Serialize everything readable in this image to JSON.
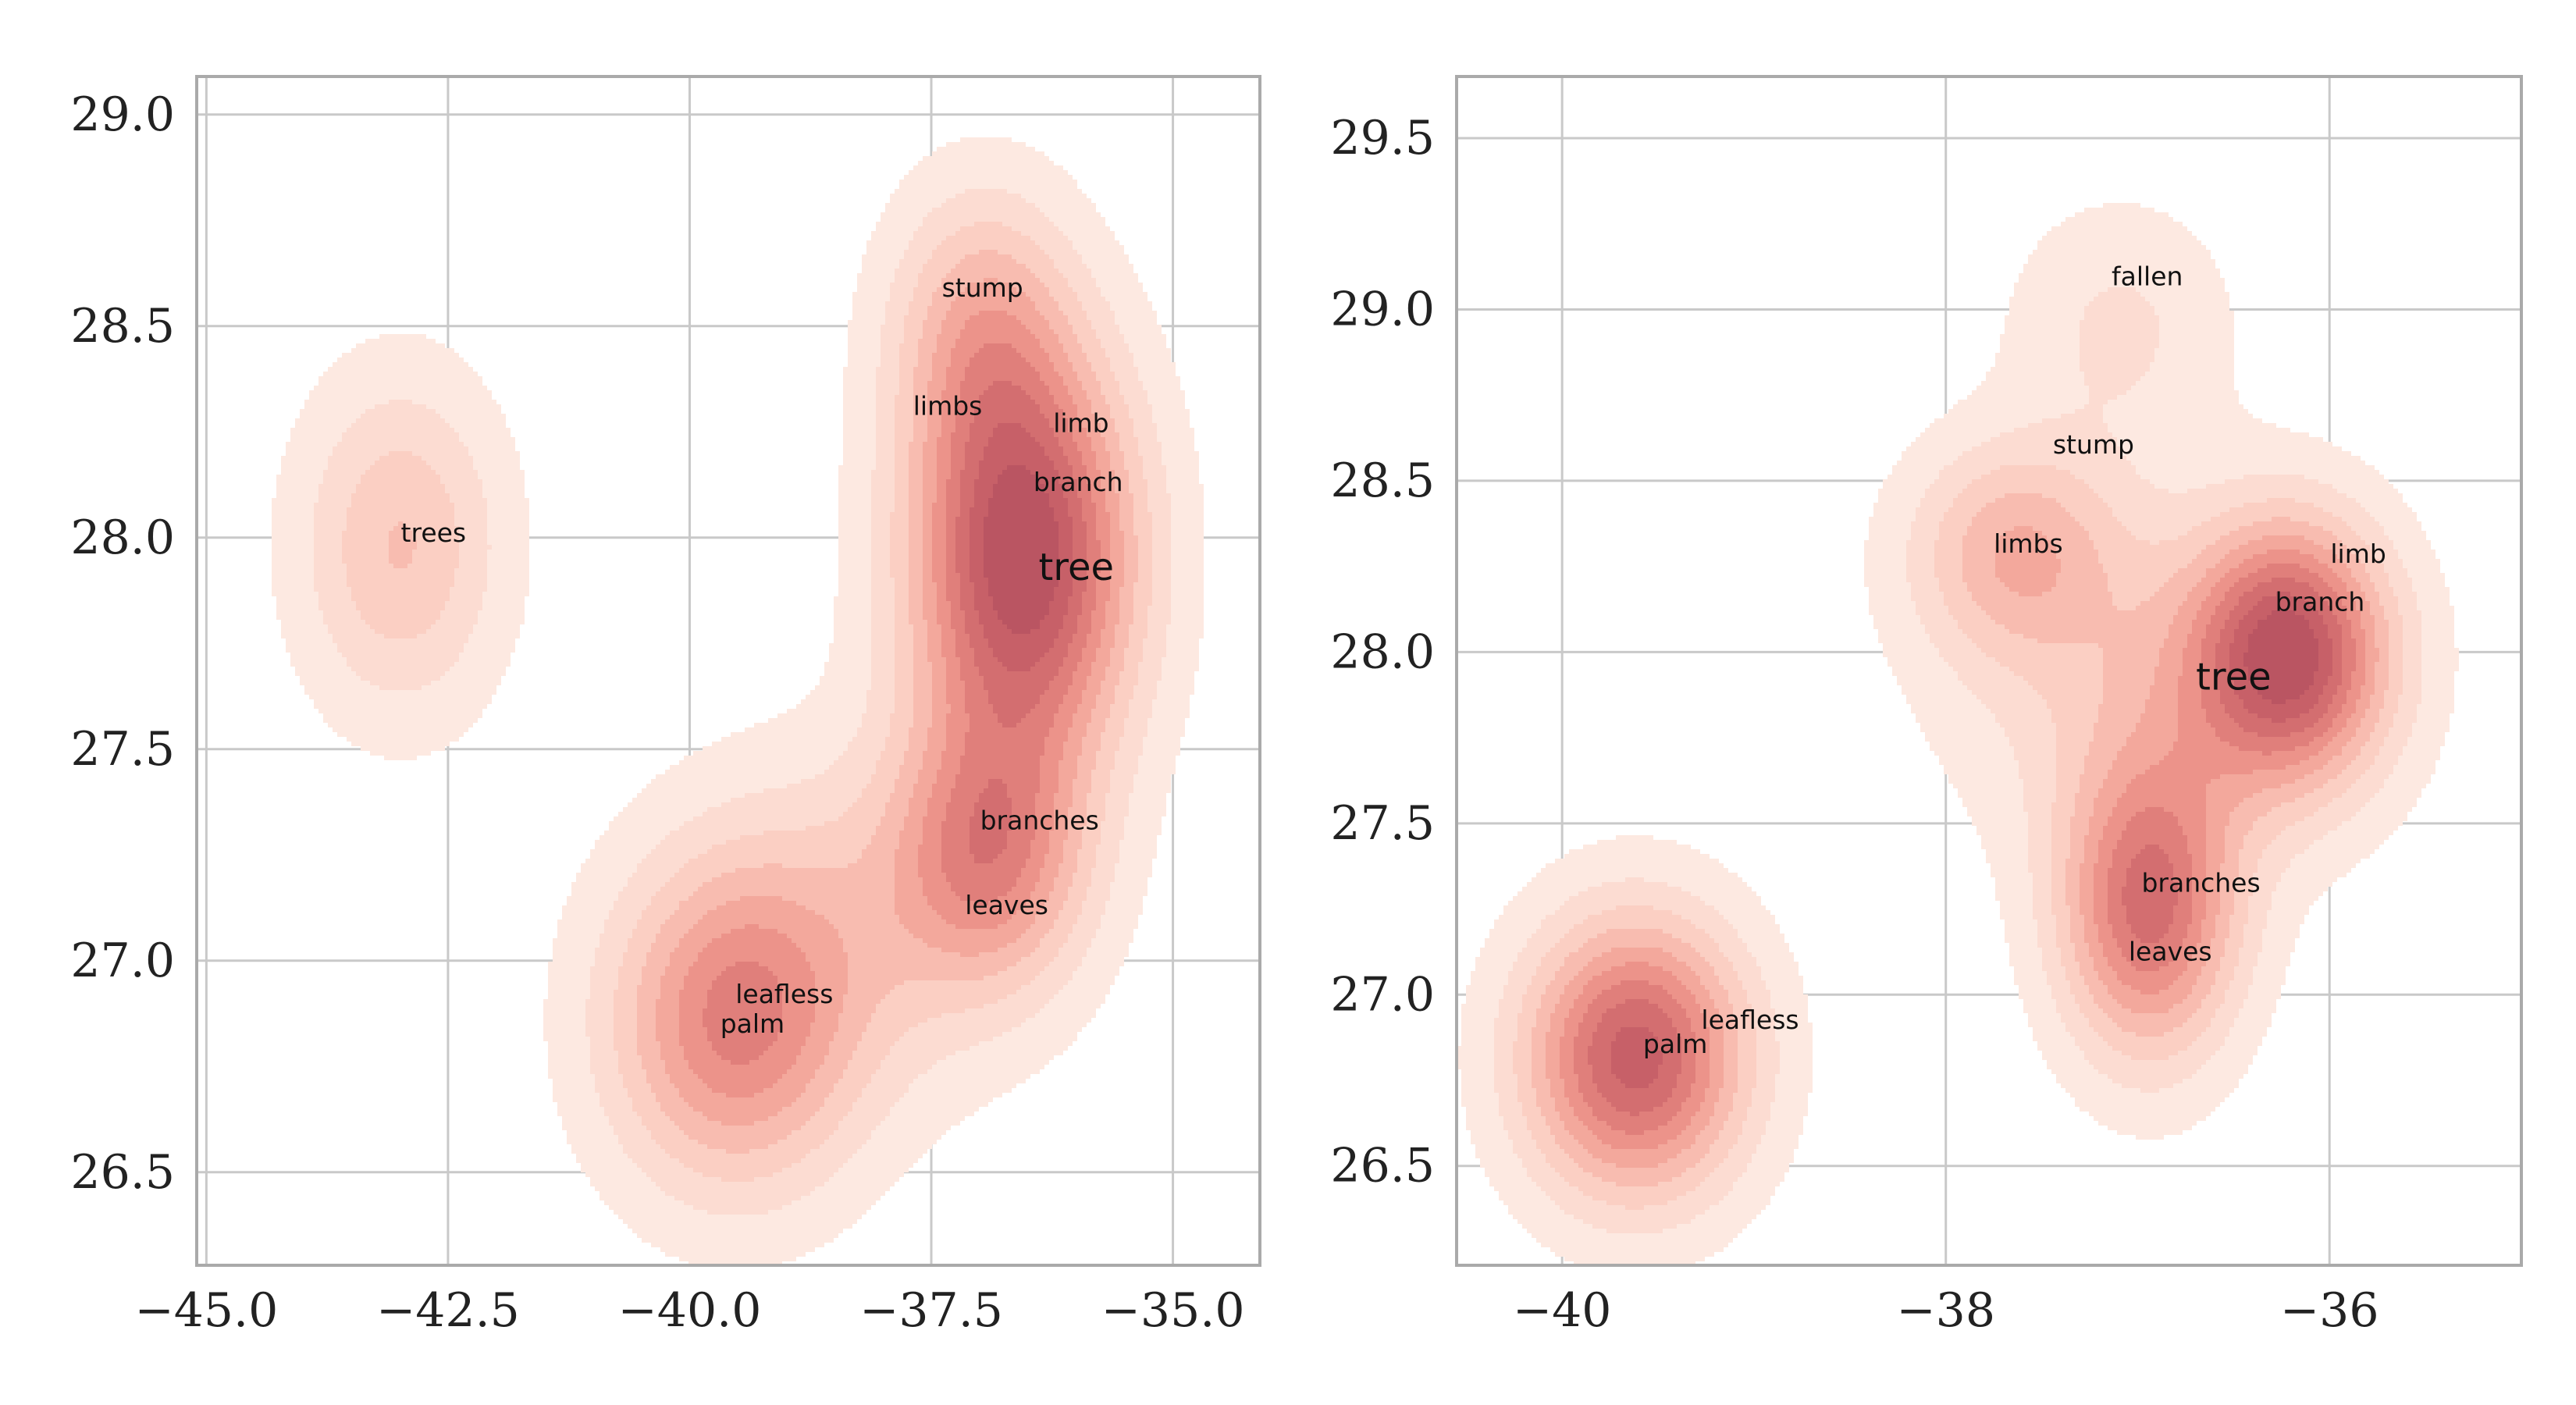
{
  "chart_data": [
    {
      "type": "kde-contour",
      "title": "",
      "xlabel": "",
      "ylabel": "",
      "xlim": [
        -45.1,
        -34.1
      ],
      "ylim": [
        26.28,
        29.09
      ],
      "grid": true,
      "xticks": [
        -45.0,
        -42.5,
        -40.0,
        -37.5,
        -35.0
      ],
      "xtick_labels": [
        "−45.0",
        "−42.5",
        "−40.0",
        "−37.5",
        "−35.0"
      ],
      "yticks": [
        26.5,
        27.0,
        27.5,
        28.0,
        28.5,
        29.0
      ],
      "ytick_labels": [
        "26.5",
        "27.0",
        "27.5",
        "28.0",
        "28.5",
        "29.0"
      ],
      "labels": [
        {
          "text": "trees",
          "x": -42.65,
          "y": 27.99
        },
        {
          "text": "stump",
          "x": -36.97,
          "y": 28.57
        },
        {
          "text": "limbs",
          "x": -37.33,
          "y": 28.29
        },
        {
          "text": "limb",
          "x": -35.95,
          "y": 28.25
        },
        {
          "text": "branch",
          "x": -35.98,
          "y": 28.11
        },
        {
          "text": "tree",
          "x": -36.0,
          "y": 27.9,
          "emphasis": true
        },
        {
          "text": "branches",
          "x": -36.38,
          "y": 27.31
        },
        {
          "text": "leaves",
          "x": -36.72,
          "y": 27.11
        },
        {
          "text": "leafless",
          "x": -39.02,
          "y": 26.9
        },
        {
          "text": "palm",
          "x": -39.35,
          "y": 26.83
        }
      ],
      "density_peaks": [
        {
          "x": -42.99,
          "y": 27.98,
          "weight": 0.35,
          "sx": 0.72,
          "sy": 0.27
        },
        {
          "x": -36.55,
          "y": 27.95,
          "weight": 1.0,
          "sx": 0.8,
          "sy": 0.34
        },
        {
          "x": -37.0,
          "y": 28.5,
          "weight": 0.34,
          "sx": 0.65,
          "sy": 0.23
        },
        {
          "x": -36.9,
          "y": 27.25,
          "weight": 0.52,
          "sx": 0.7,
          "sy": 0.22
        },
        {
          "x": -39.55,
          "y": 26.85,
          "weight": 0.6,
          "sx": 0.9,
          "sy": 0.27
        },
        {
          "x": -38.2,
          "y": 27.1,
          "weight": 0.2,
          "sx": 1.2,
          "sy": 0.3
        }
      ]
    },
    {
      "type": "kde-contour",
      "title": "",
      "xlabel": "",
      "ylabel": "",
      "xlim": [
        -40.55,
        -35.0
      ],
      "ylim": [
        26.21,
        29.68
      ],
      "grid": true,
      "xticks": [
        -40,
        -38,
        -36
      ],
      "xtick_labels": [
        "−40",
        "−38",
        "−36"
      ],
      "yticks": [
        26.5,
        27.0,
        27.5,
        28.0,
        28.5,
        29.0,
        29.5
      ],
      "ytick_labels": [
        "26.5",
        "27.0",
        "27.5",
        "28.0",
        "28.5",
        "29.0",
        "29.5"
      ],
      "labels": [
        {
          "text": "fallen",
          "x": -36.95,
          "y": 29.07
        },
        {
          "text": "stump",
          "x": -37.23,
          "y": 28.58
        },
        {
          "text": "limbs",
          "x": -37.57,
          "y": 28.29
        },
        {
          "text": "limb",
          "x": -35.85,
          "y": 28.26
        },
        {
          "text": "branch",
          "x": -36.05,
          "y": 28.12
        },
        {
          "text": "tree",
          "x": -36.5,
          "y": 27.89,
          "emphasis": true
        },
        {
          "text": "branches",
          "x": -36.67,
          "y": 27.3
        },
        {
          "text": "leaves",
          "x": -36.83,
          "y": 27.1
        },
        {
          "text": "leafless",
          "x": -39.02,
          "y": 26.9
        },
        {
          "text": "palm",
          "x": -39.41,
          "y": 26.83
        }
      ],
      "density_peaks": [
        {
          "x": -39.62,
          "y": 26.82,
          "weight": 1.0,
          "sx": 0.4,
          "sy": 0.28
        },
        {
          "x": -36.22,
          "y": 28.0,
          "weight": 1.0,
          "sx": 0.35,
          "sy": 0.26
        },
        {
          "x": -36.95,
          "y": 27.25,
          "weight": 0.85,
          "sx": 0.32,
          "sy": 0.3
        },
        {
          "x": -37.65,
          "y": 28.3,
          "weight": 0.45,
          "sx": 0.38,
          "sy": 0.22
        },
        {
          "x": -37.1,
          "y": 28.95,
          "weight": 0.2,
          "sx": 0.4,
          "sy": 0.25
        },
        {
          "x": -36.9,
          "y": 27.9,
          "weight": 0.3,
          "sx": 0.7,
          "sy": 0.35
        }
      ]
    }
  ],
  "colors": {
    "contour_levels": [
      "#fde9e1",
      "#fcdcd2",
      "#fbcfc3",
      "#f8bcb0",
      "#f3a89c",
      "#ec938a",
      "#e07f7b",
      "#d36e70",
      "#c76068",
      "#ba5562"
    ],
    "contour_line": "#a55a5a",
    "grid": "#c9c9c9",
    "axes": "#aaaaaa",
    "text": "#111111"
  }
}
